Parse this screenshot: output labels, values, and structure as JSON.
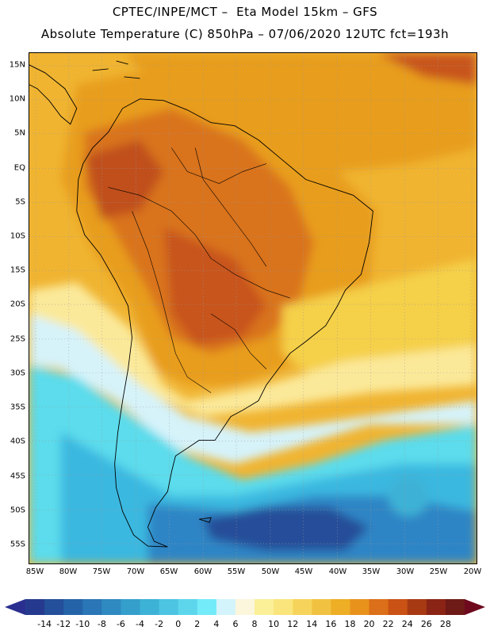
{
  "header": {
    "title_line1": "CPTEC/INPE/MCT –  Eta Model 15km – GFS",
    "title_line2": "Absolute Temperature (C) 850hPa – 07/06/2020 12UTC fct=193h"
  },
  "map": {
    "lat_labels": [
      "15N",
      "10N",
      "5N",
      "EQ",
      "5S",
      "10S",
      "15S",
      "20S",
      "25S",
      "30S",
      "35S",
      "40S",
      "45S",
      "50S",
      "55S"
    ],
    "lon_labels": [
      "85W",
      "80W",
      "75W",
      "70W",
      "65W",
      "60W",
      "55W",
      "50W",
      "45W",
      "40W",
      "35W",
      "30W",
      "25W",
      "20W"
    ],
    "field_colors": {
      "very_warm": "#c8541a",
      "warm": "#d9731c",
      "orange": "#e89d1e",
      "gold": "#f0b431",
      "yellow": "#f5d04a",
      "light_yellow": "#fbe99a",
      "pale": "#fbf6dc",
      "ice": "#d6f3fa",
      "cyan": "#5bdcec",
      "sky": "#3bb8e0",
      "blue": "#2f85c5",
      "deep_blue": "#254e99"
    }
  },
  "colorbar": {
    "labels": [
      "-14",
      "-12",
      "-10",
      "-8",
      "-6",
      "-4",
      "-2",
      "0",
      "2",
      "4",
      "6",
      "8",
      "10",
      "12",
      "14",
      "16",
      "18",
      "20",
      "22",
      "24",
      "26",
      "28"
    ],
    "under_color": "#2a2f8f",
    "over_color": "#6e0a1e",
    "colors": [
      "#253a8e",
      "#244f9a",
      "#2563a8",
      "#2a76b6",
      "#2e8ac0",
      "#359fcc",
      "#3cb2d6",
      "#4cc4e2",
      "#5dd6ec",
      "#73ebf8",
      "#d3f4fb",
      "#fbf6dc",
      "#fbef98",
      "#f9e57c",
      "#f6d45c",
      "#f1c241",
      "#eeae25",
      "#e8921c",
      "#dc6f1a",
      "#c95214",
      "#a83a13",
      "#8a2415",
      "#6e1a17"
    ]
  }
}
